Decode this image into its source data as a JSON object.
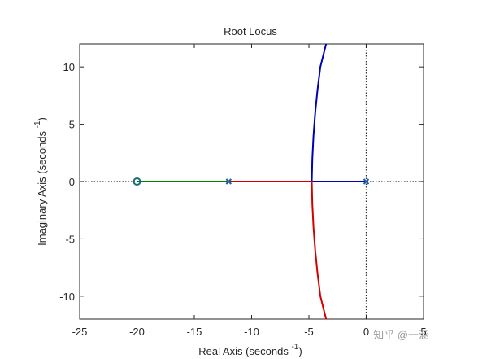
{
  "chart_data": {
    "type": "line",
    "title": "Root Locus",
    "xlabel": [
      "Real Axis (seconds ",
      "-1",
      ")"
    ],
    "ylabel": [
      "Imaginary Axis (seconds ",
      "-1",
      ")"
    ],
    "xlim": [
      -25,
      5
    ],
    "ylim": [
      -12,
      12
    ],
    "xticks": [
      -25,
      -20,
      -15,
      -10,
      -5,
      0,
      5
    ],
    "yticks": [
      -10,
      -5,
      0,
      5,
      10
    ],
    "grid": false,
    "series": [
      {
        "color": "#0000b4",
        "x": [
          0,
          -4.75,
          -4.7,
          -4.6,
          -4.45,
          -4.25,
          -4.0,
          -3.5
        ],
        "y": [
          0,
          0,
          2,
          4,
          6,
          8,
          10,
          12
        ]
      },
      {
        "color": "#d40000",
        "x": [
          -12,
          -4.75,
          -4.7,
          -4.6,
          -4.45,
          -4.25,
          -4.0,
          -3.5
        ],
        "y": [
          0,
          0,
          -2,
          -4,
          -6,
          -8,
          -10,
          -12
        ]
      },
      {
        "color": "#008000",
        "x": [
          -20,
          -12
        ],
        "y": [
          0,
          0
        ]
      }
    ],
    "poles": {
      "color": "#1f5fa8",
      "x": [
        0,
        -12
      ],
      "y": [
        0,
        0
      ]
    },
    "zeros": {
      "color": "#1a6a7a",
      "x": [
        -20
      ],
      "y": [
        0
      ]
    },
    "watermark": "知乎 @一涵"
  }
}
